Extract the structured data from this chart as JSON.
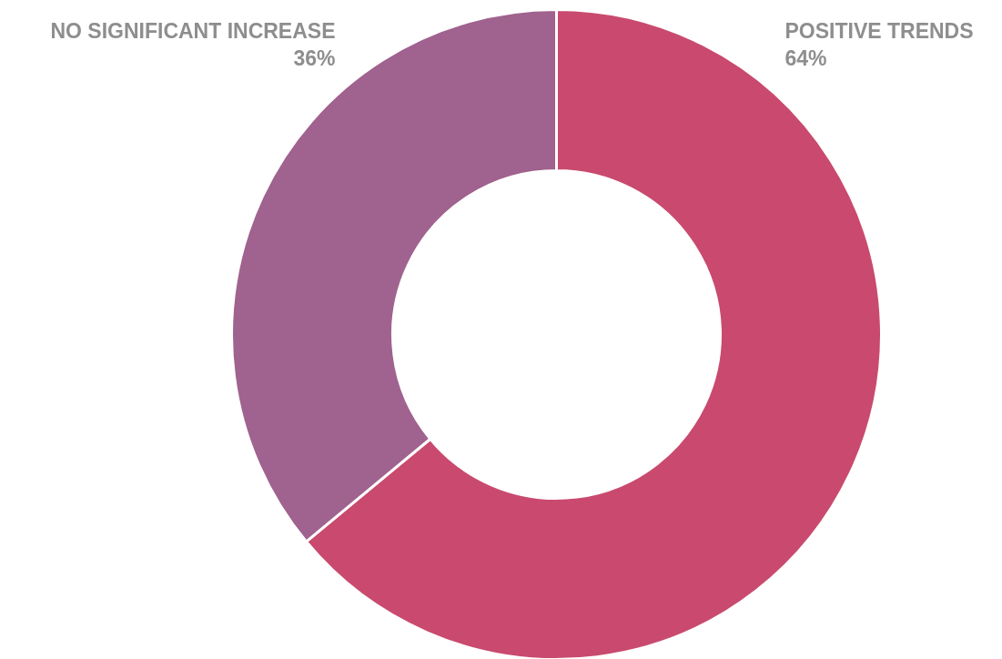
{
  "chart_data": {
    "type": "donut",
    "categories": [
      "POSITIVE TRENDS",
      "NO SIGNIFICANT INCREASE"
    ],
    "values": [
      64,
      36
    ],
    "value_labels": [
      "64%",
      "36%"
    ],
    "colors": [
      "#c94a6e",
      "#a0628e"
    ]
  }
}
